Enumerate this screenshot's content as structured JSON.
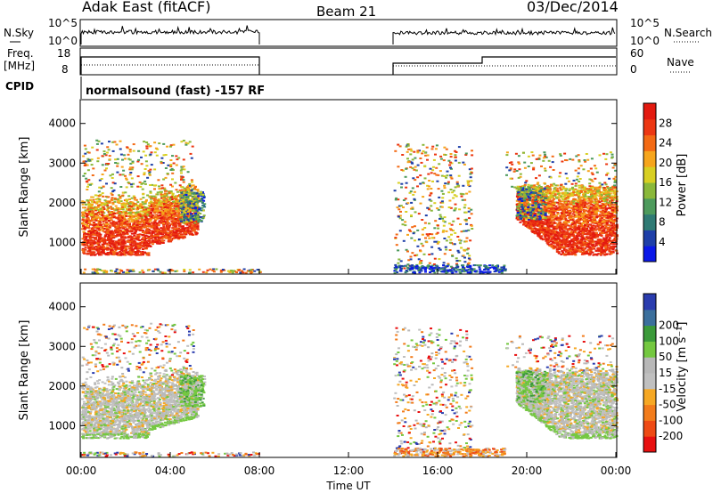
{
  "header": {
    "station": "Adak East (fitACF)",
    "beam": "Beam 21",
    "date": "03/Dec/2014"
  },
  "strip_labels": {
    "nsky": "N.Sky",
    "nsky_ticks": [
      "10^5",
      "10^0"
    ],
    "nsearch": "N.Search",
    "nsearch_ticks": [
      "10^5",
      "10^0"
    ],
    "freq_line1": "Freq.",
    "freq_line2": "[MHz]",
    "freq_ticks": [
      "18",
      "8"
    ],
    "nave": "Nave",
    "nave_ticks": [
      "60",
      "0"
    ],
    "cpid": "CPID",
    "cpid_text": "normalsound (fast) -157 RF"
  },
  "chart_data": [
    {
      "type": "heatmap",
      "name": "power-panel",
      "ylabel": "Slant Range [km]",
      "y_ticks": [
        "1000",
        "2000",
        "3000",
        "4000"
      ],
      "ylim": [
        200,
        4600
      ],
      "xlim": [
        0,
        24
      ],
      "colorbar": {
        "label": "Power [dB]",
        "ticks": [
          "4",
          "8",
          "12",
          "16",
          "20",
          "24",
          "28"
        ],
        "colors": [
          "#0a18e8",
          "#1e3fa8",
          "#2f7a74",
          "#4d9a5c",
          "#8ab83a",
          "#d8cf22",
          "#f6a51c",
          "#f36a14",
          "#ec3712",
          "#e31a10"
        ]
      },
      "echo_regions": [
        {
          "t0": 0.0,
          "t1": 5.5,
          "r_lo": 700,
          "r_hi": 2400,
          "dominant": "24-28 dB (orange-red)"
        },
        {
          "t0": 14.0,
          "t1": 17.5,
          "r_lo": 300,
          "r_hi": 3500,
          "dominant": "scattered"
        },
        {
          "t0": 19.5,
          "t1": 24.0,
          "r_lo": 700,
          "r_hi": 2400,
          "dominant": "24-28 dB (orange-red)"
        }
      ]
    },
    {
      "type": "heatmap",
      "name": "velocity-panel",
      "ylabel": "Slant Range [km]",
      "y_ticks": [
        "1000",
        "2000",
        "3000",
        "4000"
      ],
      "ylim": [
        200,
        4600
      ],
      "xlim": [
        0,
        24
      ],
      "colorbar": {
        "label": "Velocity [m s⁻¹]",
        "ticks": [
          "-200",
          "-100",
          "-50",
          "-15",
          "15",
          "50",
          "100",
          "200"
        ],
        "colors": [
          "#e81010",
          "#ee4a14",
          "#f27c1c",
          "#f6a824",
          "#c0c0c0",
          "#b8b8b8",
          "#74c840",
          "#3b9a3a",
          "#3b6f9c",
          "#2a3cae"
        ]
      },
      "echo_regions": [
        {
          "t0": 0.0,
          "t1": 5.5,
          "r_lo": 700,
          "r_hi": 2400,
          "dominant": "-15 to 15 (grey)"
        },
        {
          "t0": 14.0,
          "t1": 17.5,
          "r_lo": 300,
          "r_hi": 3500,
          "dominant": "scattered"
        },
        {
          "t0": 19.5,
          "t1": 24.0,
          "r_lo": 700,
          "r_hi": 2400,
          "dominant": "grey with green"
        }
      ]
    }
  ],
  "x_axis": {
    "ticks": [
      "00:00",
      "04:00",
      "08:00",
      "12:00",
      "16:00",
      "20:00",
      "00:00"
    ],
    "label": "Time UT"
  }
}
